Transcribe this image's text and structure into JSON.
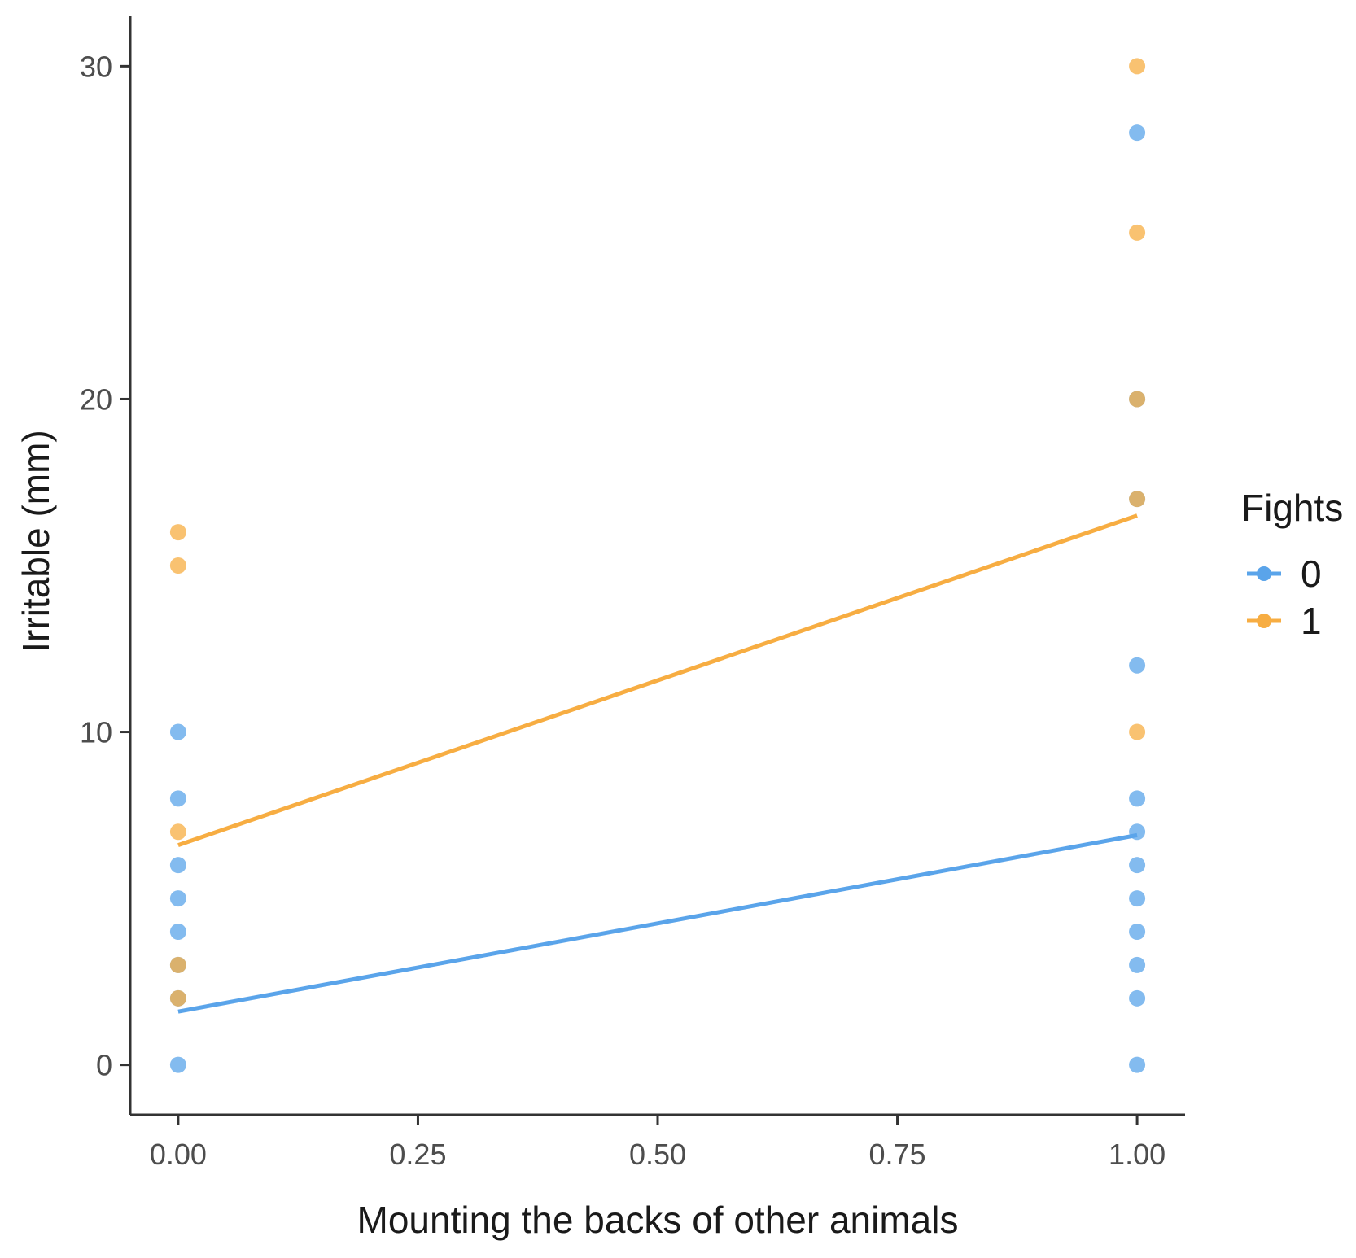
{
  "chart_data": {
    "type": "scatter",
    "title": "",
    "xlabel": "Mounting the backs of other animals",
    "ylabel": "Irritable (mm)",
    "xlim": [
      -0.05,
      1.05
    ],
    "ylim": [
      -1.5,
      31.5
    ],
    "x_ticks": [
      0,
      0.25,
      0.5,
      0.75,
      1
    ],
    "x_tick_labels": [
      "0.00",
      "0.25",
      "0.50",
      "0.75",
      "1.00"
    ],
    "y_ticks": [
      0,
      10,
      20,
      30
    ],
    "y_tick_labels": [
      "0",
      "10",
      "20",
      "30"
    ],
    "grid": false,
    "legend": {
      "title": "Fights",
      "placement": "right"
    },
    "series": [
      {
        "name": "0",
        "color": "#5aa4ea",
        "points": [
          [
            0,
            0
          ],
          [
            0,
            2
          ],
          [
            0,
            3
          ],
          [
            0,
            4
          ],
          [
            0,
            5
          ],
          [
            0,
            6
          ],
          [
            0,
            8
          ],
          [
            0,
            10
          ],
          [
            1,
            0
          ],
          [
            1,
            2
          ],
          [
            1,
            3
          ],
          [
            1,
            4
          ],
          [
            1,
            5
          ],
          [
            1,
            6
          ],
          [
            1,
            7
          ],
          [
            1,
            8
          ],
          [
            1,
            12
          ],
          [
            1,
            17
          ],
          [
            1,
            20
          ],
          [
            1,
            28
          ]
        ],
        "fit_line": [
          [
            0,
            1.6
          ],
          [
            1,
            6.9
          ]
        ]
      },
      {
        "name": "1",
        "color": "#f7ad42",
        "points": [
          [
            0,
            2
          ],
          [
            0,
            3
          ],
          [
            0,
            7
          ],
          [
            0,
            15
          ],
          [
            0,
            16
          ],
          [
            1,
            10
          ],
          [
            1,
            17
          ],
          [
            1,
            20
          ],
          [
            1,
            25
          ],
          [
            1,
            30
          ]
        ],
        "fit_line": [
          [
            0,
            6.6
          ],
          [
            1,
            16.5
          ]
        ]
      }
    ]
  }
}
